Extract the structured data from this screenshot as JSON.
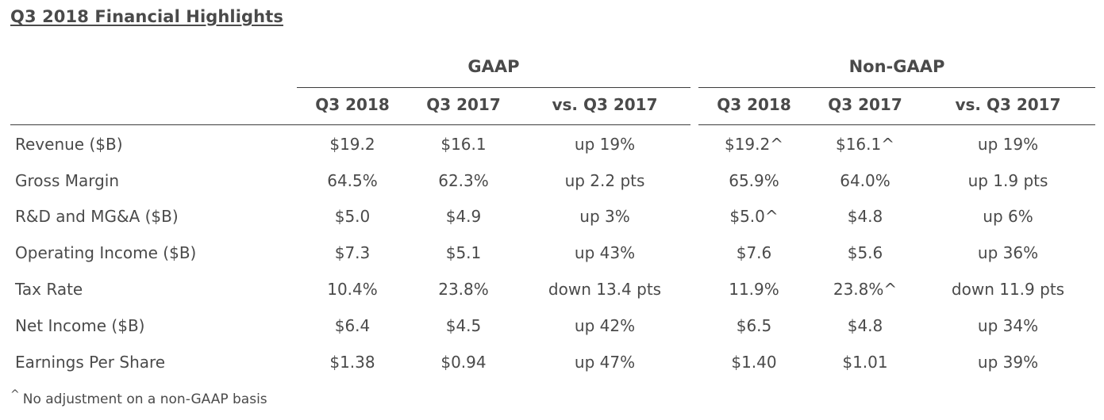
{
  "title": "Q3 2018 Financial Highlights",
  "groups": {
    "gaap": "GAAP",
    "non_gaap": "Non-GAAP"
  },
  "columns": {
    "gaap": [
      "Q3 2018",
      "Q3 2017",
      "vs. Q3 2017"
    ],
    "non_gaap": [
      "Q3 2018",
      "Q3 2017",
      "vs. Q3 2017"
    ]
  },
  "rows": [
    {
      "label": "Revenue ($B)",
      "gaap": [
        "$19.2",
        "$16.1",
        "up 19%"
      ],
      "non_gaap": [
        "$19.2^",
        "$16.1^",
        "up 19%"
      ]
    },
    {
      "label": "Gross Margin",
      "gaap": [
        "64.5%",
        "62.3%",
        "up 2.2 pts"
      ],
      "non_gaap": [
        "65.9%",
        "64.0%",
        "up 1.9 pts"
      ]
    },
    {
      "label": "R&D and MG&A ($B)",
      "gaap": [
        "$5.0",
        "$4.9",
        "up 3%"
      ],
      "non_gaap": [
        "$5.0^",
        "$4.8",
        "up 6%"
      ]
    },
    {
      "label": "Operating Income ($B)",
      "gaap": [
        "$7.3",
        "$5.1",
        "up 43%"
      ],
      "non_gaap": [
        "$7.6",
        "$5.6",
        "up 36%"
      ]
    },
    {
      "label": "Tax Rate",
      "gaap": [
        "10.4%",
        "23.8%",
        "down 13.4 pts"
      ],
      "non_gaap": [
        "11.9%",
        "23.8%^",
        "down 11.9 pts"
      ]
    },
    {
      "label": "Net Income ($B)",
      "gaap": [
        "$6.4",
        "$4.5",
        "up 42%"
      ],
      "non_gaap": [
        "$6.5",
        "$4.8",
        "up 34%"
      ]
    },
    {
      "label": "Earnings Per Share",
      "gaap": [
        "$1.38",
        "$0.94",
        "up 47%"
      ],
      "non_gaap": [
        "$1.40",
        "$1.01",
        "up 39%"
      ]
    }
  ],
  "footnote": {
    "marker": "^",
    "text": "No adjustment on a non-GAAP basis"
  }
}
